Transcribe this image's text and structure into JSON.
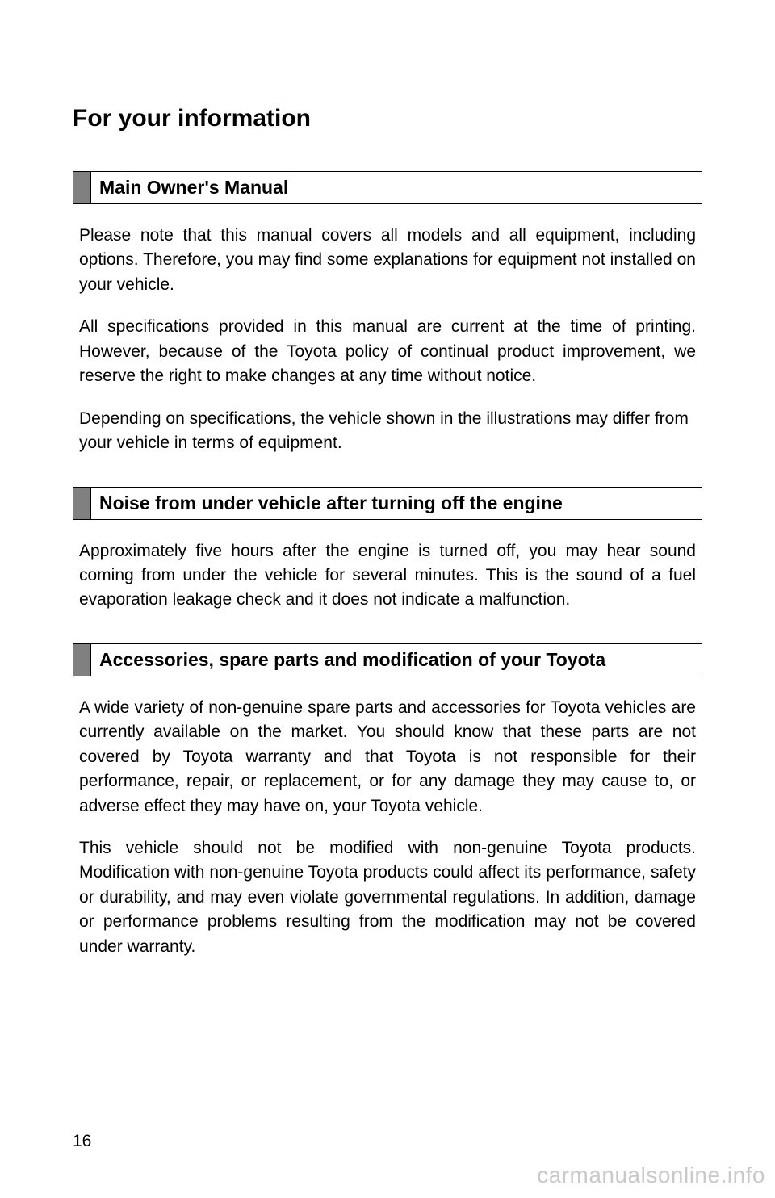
{
  "page": {
    "title": "For your information",
    "page_number": "16",
    "watermark": "carmanualsonline.info",
    "background_color": "#ffffff",
    "text_color": "#000000",
    "tab_color": "#808080",
    "watermark_color": "#c9c9c9"
  },
  "sections": [
    {
      "heading": "Main Owner's Manual",
      "paragraphs": [
        "Please note that this manual covers all models and all equipment, including options. Therefore, you may find some explanations for equipment not installed on your vehicle.",
        "All specifications provided in this manual are current at the time of printing. However, because of the Toyota policy of continual product improvement, we reserve the right to make changes at any time without notice.",
        "Depending on specifications, the vehicle shown in the illustrations may differ from your vehicle in terms of equipment."
      ],
      "justify": [
        true,
        true,
        false
      ]
    },
    {
      "heading": "Noise from under vehicle after turning off the engine",
      "paragraphs": [
        "Approximately five hours after the engine is turned off, you may hear sound coming from under the vehicle for several minutes. This is the sound of a fuel evaporation leakage check and it does not indicate a malfunction."
      ],
      "justify": [
        true
      ]
    },
    {
      "heading": "Accessories, spare parts and modification of your Toyota",
      "paragraphs": [
        "A wide variety of non-genuine spare parts and accessories for Toyota vehicles are currently available on the market. You should know that these parts are not covered by Toyota warranty and that Toyota is not responsible for their performance, repair, or replacement, or for any damage they may cause to, or adverse effect they may have on, your Toyota vehicle.",
        "This vehicle should not be modified with non-genuine Toyota products. Modification with non-genuine Toyota products could affect its performance, safety or durability, and may even violate governmental regulations. In addition, damage or performance problems resulting from the modification may not be covered under warranty."
      ],
      "justify": [
        true,
        true
      ]
    }
  ]
}
